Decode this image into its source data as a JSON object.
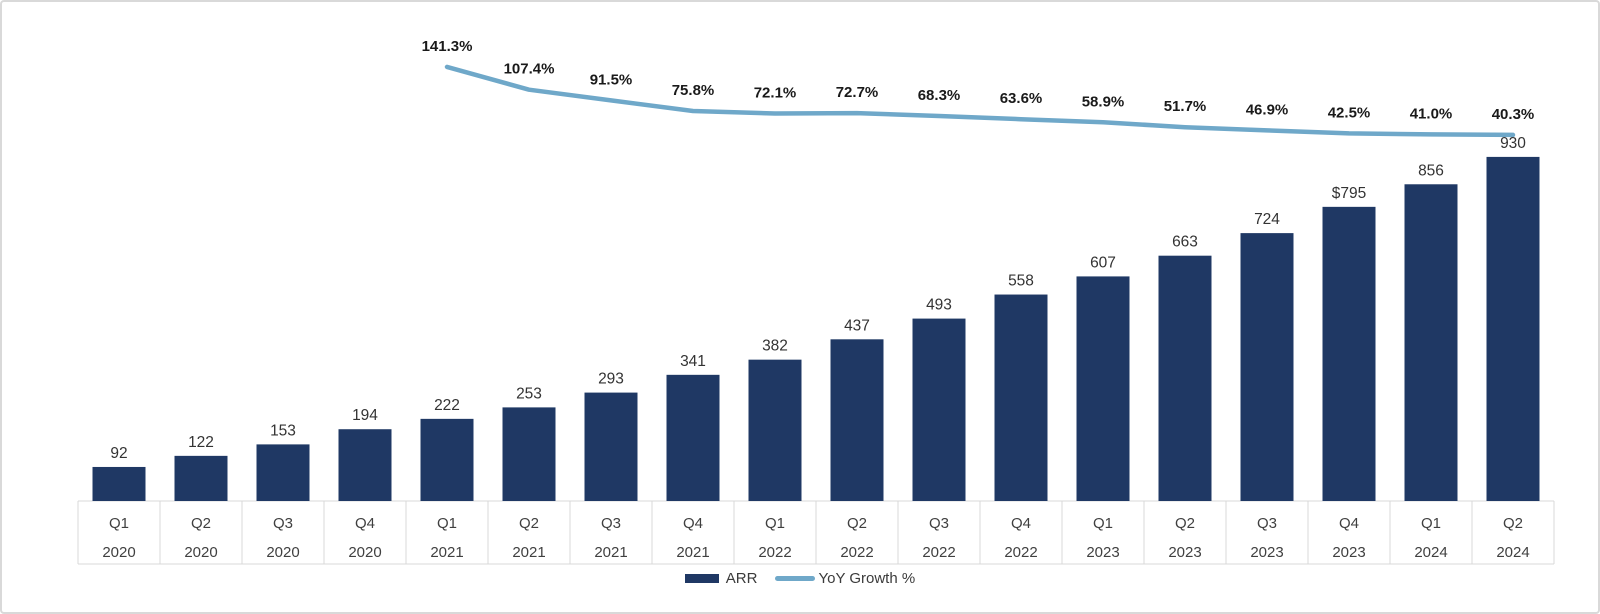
{
  "chart_data": {
    "type": "bar",
    "combo": "bar series with secondary-axis line series",
    "title": "",
    "xlabel": "",
    "ylabel": "",
    "ylim": [
      0,
      1350
    ],
    "grid": false,
    "legend_position": "bottom",
    "categories": [
      {
        "q": "Q1",
        "year": "2020"
      },
      {
        "q": "Q2",
        "year": "2020"
      },
      {
        "q": "Q3",
        "year": "2020"
      },
      {
        "q": "Q4",
        "year": "2020"
      },
      {
        "q": "Q1",
        "year": "2021"
      },
      {
        "q": "Q2",
        "year": "2021"
      },
      {
        "q": "Q3",
        "year": "2021"
      },
      {
        "q": "Q4",
        "year": "2021"
      },
      {
        "q": "Q1",
        "year": "2022"
      },
      {
        "q": "Q2",
        "year": "2022"
      },
      {
        "q": "Q3",
        "year": "2022"
      },
      {
        "q": "Q4",
        "year": "2022"
      },
      {
        "q": "Q1",
        "year": "2023"
      },
      {
        "q": "Q2",
        "year": "2023"
      },
      {
        "q": "Q3",
        "year": "2023"
      },
      {
        "q": "Q4",
        "year": "2023"
      },
      {
        "q": "Q1",
        "year": "2024"
      },
      {
        "q": "Q2",
        "year": "2024"
      }
    ],
    "series": [
      {
        "name": "ARR",
        "type": "bar",
        "color": "#1F3864",
        "values": [
          92,
          122,
          153,
          194,
          222,
          253,
          293,
          341,
          382,
          437,
          493,
          558,
          607,
          663,
          724,
          795,
          856,
          930
        ],
        "labels": [
          "92",
          "122",
          "153",
          "194",
          "222",
          "253",
          "293",
          "341",
          "382",
          "437",
          "493",
          "558",
          "607",
          "663",
          "724",
          "$795",
          "856",
          "930"
        ]
      },
      {
        "name": "YoY Growth %",
        "type": "line",
        "color": "#6FA8C9",
        "values": [
          null,
          null,
          null,
          null,
          141.3,
          107.4,
          91.5,
          75.8,
          72.1,
          72.7,
          68.3,
          63.6,
          58.9,
          51.7,
          46.9,
          42.5,
          41.0,
          40.3
        ],
        "labels": [
          null,
          null,
          null,
          null,
          "141.3%",
          "107.4%",
          "91.5%",
          "75.8%",
          "72.1%",
          "72.7%",
          "68.3%",
          "63.6%",
          "58.9%",
          "51.7%",
          "46.9%",
          "42.5%",
          "41.0%",
          "40.3%"
        ]
      }
    ]
  },
  "style": {
    "bar_label_color": "#333333",
    "growth_label_color": "#1a1a1a",
    "axis_label_color": "#404040",
    "axis_line_color": "#d9d9d9",
    "background": "#ffffff"
  }
}
